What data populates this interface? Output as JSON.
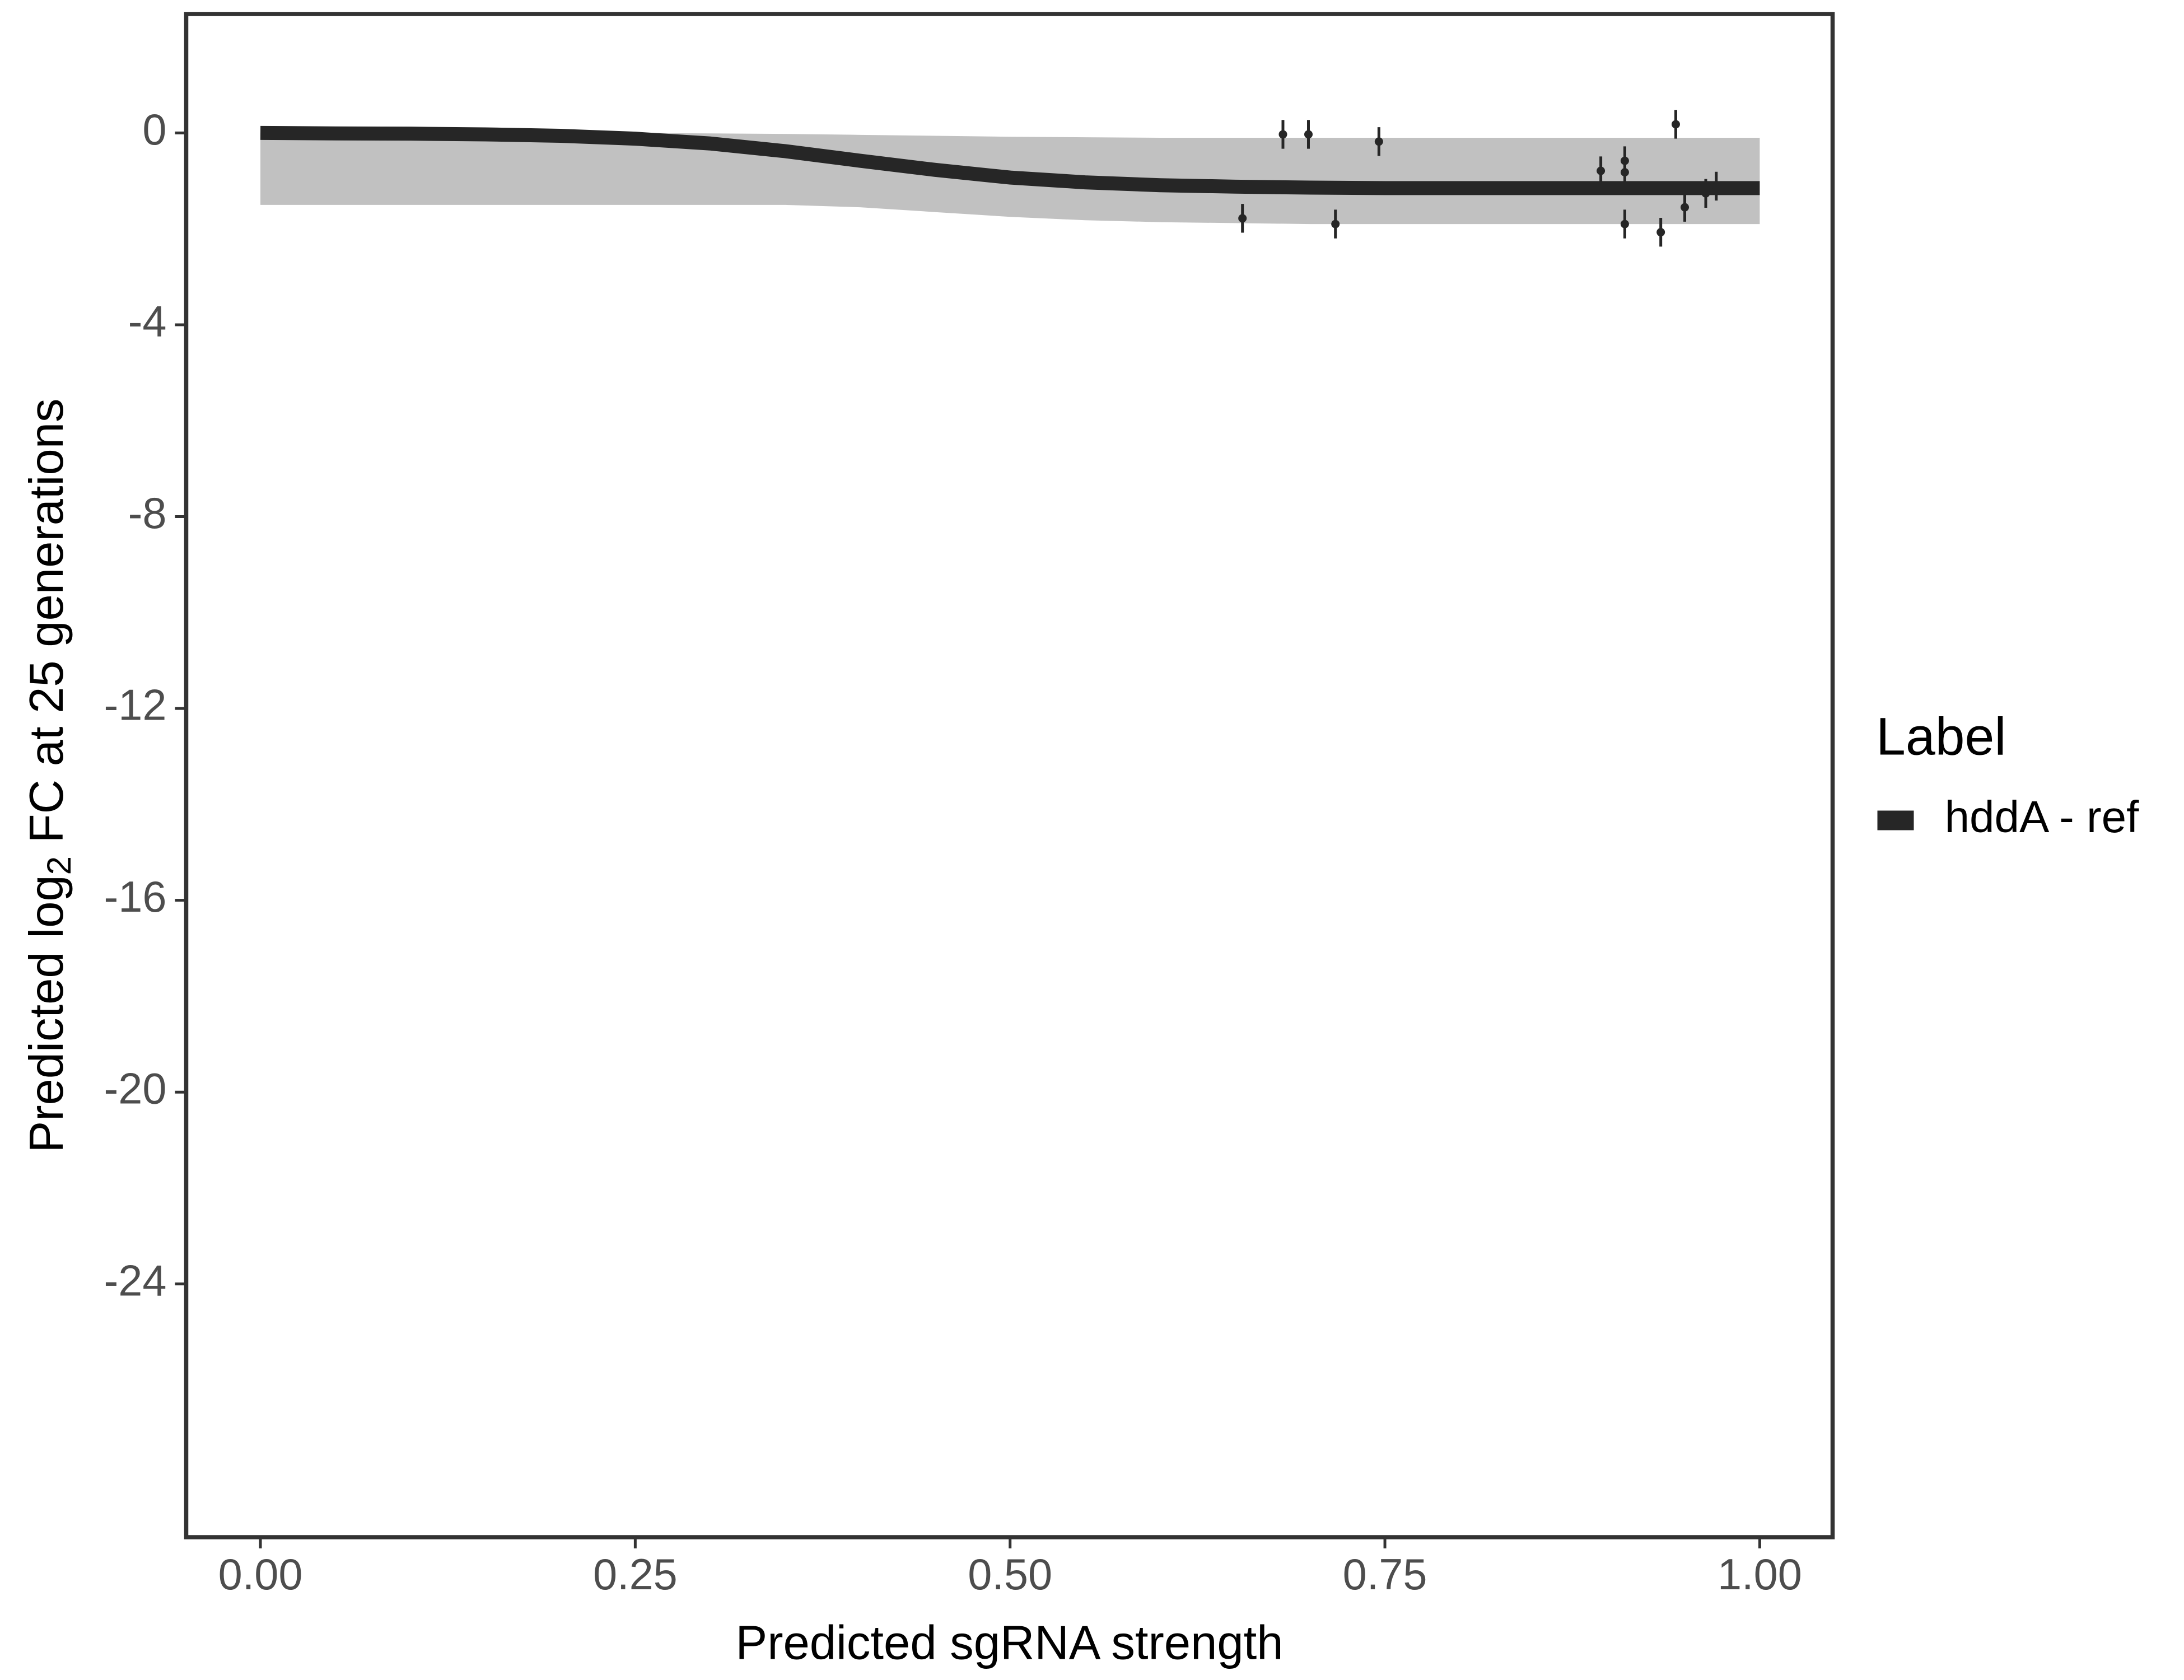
{
  "chart_data": {
    "type": "line",
    "x_label": "Predicted sgRNA strength",
    "y_label": [
      "Predicted  log",
      "2",
      " FC at 25 generations"
    ],
    "x": [
      0,
      0.05,
      0.1,
      0.15,
      0.2,
      0.25,
      0.3,
      0.35,
      0.4,
      0.45,
      0.5,
      0.55,
      0.6,
      0.65,
      0.7,
      0.75,
      0.8,
      0.85,
      0.9,
      0.95,
      1
    ],
    "series": [
      {
        "name": "hddA - ref",
        "color": "#262626",
        "values": [
          0,
          -0.01,
          -0.015,
          -0.03,
          -0.06,
          -0.12,
          -0.22,
          -0.38,
          -0.58,
          -0.77,
          -0.93,
          -1.03,
          -1.09,
          -1.12,
          -1.14,
          -1.15,
          -1.15,
          -1.15,
          -1.15,
          -1.15,
          -1.15
        ]
      }
    ],
    "band": {
      "color": "#a6a6a6",
      "upper": [
        0,
        0,
        0,
        0,
        0,
        0,
        -0.01,
        -0.02,
        -0.04,
        -0.06,
        -0.08,
        -0.09,
        -0.1,
        -0.1,
        -0.1,
        -0.1,
        -0.1,
        -0.1,
        -0.1,
        -0.1,
        -0.1
      ],
      "lower": [
        -1.5,
        -1.5,
        -1.5,
        -1.5,
        -1.5,
        -1.5,
        -1.5,
        -1.5,
        -1.55,
        -1.65,
        -1.75,
        -1.82,
        -1.86,
        -1.88,
        -1.9,
        -1.9,
        -1.9,
        -1.9,
        -1.9,
        -1.9,
        -1.9
      ]
    },
    "points": {
      "color": "#262626",
      "x": [
        0.655,
        0.682,
        0.699,
        0.717,
        0.746,
        0.894,
        0.91,
        0.91,
        0.91,
        0.934,
        0.944,
        0.95,
        0.964,
        0.971
      ],
      "values": [
        -1.78,
        -0.03,
        -0.03,
        -1.9,
        -0.18,
        -0.79,
        -0.58,
        -0.82,
        -1.9,
        -2.07,
        0.18,
        -1.55,
        -1.26,
        -1.11
      ],
      "errors": [
        0.3,
        0.3,
        0.3,
        0.3,
        0.3,
        0.3,
        0.3,
        0.3,
        0.3,
        0.3,
        0.3,
        0.3,
        0.3,
        0.3
      ]
    },
    "xlim": [
      -0.0495,
      1.0486
    ],
    "ylim": [
      -29.28,
      2.48
    ],
    "xticks": [
      {
        "value": 0,
        "label": "0.00"
      },
      {
        "value": 0.25,
        "label": "0.25"
      },
      {
        "value": 0.5,
        "label": "0.50"
      },
      {
        "value": 0.75,
        "label": "0.75"
      },
      {
        "value": 1,
        "label": "1.00"
      }
    ],
    "yticks": [
      0,
      -4,
      -8,
      -12,
      -16,
      -20,
      -24
    ],
    "legend_title": "Label",
    "legend_position": "right",
    "grid": false
  }
}
